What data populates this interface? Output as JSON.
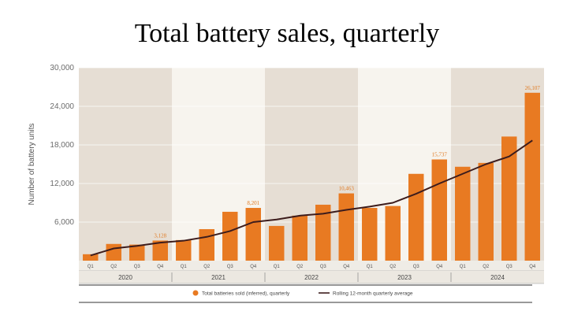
{
  "chart_data": {
    "type": "bar",
    "title": "Total battery sales, quarterly",
    "ylabel": "Number of battery units",
    "xlabel": "",
    "ylim": [
      0,
      30000
    ],
    "yticks": [
      6000,
      12000,
      18000,
      24000,
      30000
    ],
    "ytick_labels": [
      "6,000",
      "12,000",
      "18,000",
      "24,000",
      "30,000"
    ],
    "years": [
      "2020",
      "2021",
      "2022",
      "2023",
      "2024"
    ],
    "quarters": [
      "Q1",
      "Q2",
      "Q3",
      "Q4"
    ],
    "categories": [
      "Q1",
      "Q2",
      "Q3",
      "Q4",
      "Q1",
      "Q2",
      "Q3",
      "Q4",
      "Q1",
      "Q2",
      "Q3",
      "Q4",
      "Q1",
      "Q2",
      "Q3",
      "Q4",
      "Q1",
      "Q2",
      "Q3",
      "Q4"
    ],
    "series": [
      {
        "name": "Total batteries sold (inferred), quarterly",
        "type": "bar",
        "color": "#e87a22",
        "values": [
          1000,
          2600,
          2500,
          3128,
          3200,
          4900,
          7600,
          8201,
          5400,
          7000,
          8700,
          10463,
          8200,
          8500,
          13500,
          15737,
          14600,
          15200,
          19300,
          26107
        ]
      },
      {
        "name": "Rolling 12-month quarterly average",
        "type": "line",
        "color": "#3d1c1c",
        "values": [
          800,
          1900,
          2300,
          2800,
          3100,
          3700,
          4600,
          6000,
          6400,
          7000,
          7300,
          7900,
          8400,
          9000,
          10400,
          12000,
          13500,
          15000,
          16200,
          18700
        ]
      }
    ],
    "data_labels": [
      {
        "index": 3,
        "text": "3,128"
      },
      {
        "index": 7,
        "text": "8,201"
      },
      {
        "index": 11,
        "text": "10,463"
      },
      {
        "index": 15,
        "text": "15,737"
      },
      {
        "index": 19,
        "text": "26,107"
      }
    ],
    "bar_color": "#e87a22",
    "line_color": "#3d1c1c",
    "band_dark": "#e6ded4",
    "band_light": "#f7f4ee",
    "legend_position": "bottom-center",
    "grid": true
  }
}
